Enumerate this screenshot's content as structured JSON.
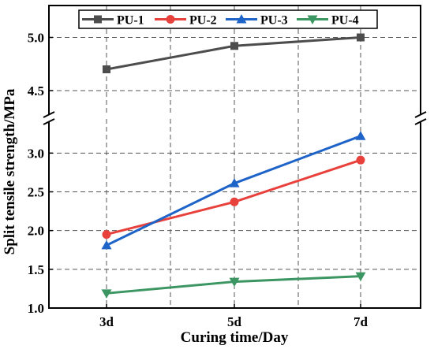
{
  "chart_data": {
    "type": "line",
    "xlabel": "Curing time/Day",
    "ylabel": "Split tensile strength/MPa",
    "categories": [
      "3d",
      "5d",
      "7d"
    ],
    "y_axis_break": true,
    "y_lower": {
      "range": [
        1.0,
        3.4
      ],
      "ticks": [
        "1.0",
        "1.5",
        "2.0",
        "2.5",
        "3.0"
      ]
    },
    "y_upper": {
      "range": [
        4.3,
        5.3
      ],
      "ticks": [
        "4.5",
        "5.0"
      ]
    },
    "grid": true,
    "legend_placement": "top",
    "series": [
      {
        "name": "PU-1",
        "values": [
          4.7,
          4.92,
          5.0
        ],
        "color": "#4d4d4d",
        "marker": "square"
      },
      {
        "name": "PU-2",
        "values": [
          1.95,
          2.37,
          2.91
        ],
        "color": "#e8413c",
        "marker": "circle"
      },
      {
        "name": "PU-3",
        "values": [
          1.81,
          2.61,
          3.22
        ],
        "color": "#1e64c8",
        "marker": "triangle-up"
      },
      {
        "name": "PU-4",
        "values": [
          1.19,
          1.34,
          1.41
        ],
        "color": "#3c9662",
        "marker": "triangle-down"
      }
    ]
  }
}
